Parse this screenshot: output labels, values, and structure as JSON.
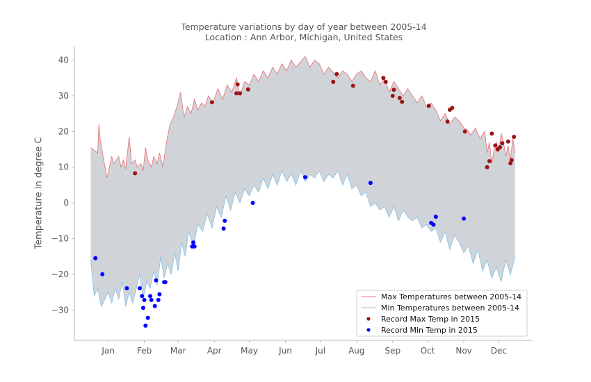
{
  "chart_data": {
    "type": "line",
    "title": "Temperature variations by day of year between 2005-14",
    "subtitle": "Location : Ann Arbor, Michigan, United States",
    "xlabel": "",
    "ylabel": "Temperature in degree C",
    "ylim": [
      -38.5,
      44
    ],
    "xlim": [
      -14,
      379
    ],
    "y_ticks": [
      40,
      30,
      20,
      10,
      0,
      -10,
      -20,
      -30
    ],
    "x_ticks": [
      {
        "day": 15,
        "label": "Jan"
      },
      {
        "day": 46,
        "label": "Feb"
      },
      {
        "day": 75,
        "label": "Mar"
      },
      {
        "day": 106,
        "label": "Apr"
      },
      {
        "day": 136,
        "label": "May"
      },
      {
        "day": 167,
        "label": "Jun"
      },
      {
        "day": 197,
        "label": "Jul"
      },
      {
        "day": 228,
        "label": "Aug"
      },
      {
        "day": 259,
        "label": "Sep"
      },
      {
        "day": 289,
        "label": "Oct"
      },
      {
        "day": 320,
        "label": "Nov"
      },
      {
        "day": 350,
        "label": "Dec"
      }
    ],
    "grid": false,
    "legend_position": "bottom-right",
    "colors": {
      "max_line": "#e8787b",
      "min_line": "#8cc2e0",
      "fill": "#d0d4d9",
      "record_max": "#9b1515",
      "record_min": "#0000ff"
    },
    "series": [
      {
        "name": "Max Temperatures between 2005-14",
        "kind": "line",
        "x": [
          0,
          6,
          7,
          8,
          12,
          14,
          18,
          20,
          24,
          26,
          28,
          30,
          33,
          35,
          38,
          40,
          43,
          45,
          47,
          49,
          52,
          54,
          57,
          59,
          62,
          65,
          68,
          71,
          74,
          77,
          80,
          83,
          86,
          89,
          92,
          95,
          98,
          101,
          105,
          109,
          113,
          117,
          121,
          125,
          128,
          132,
          136,
          140,
          144,
          148,
          152,
          156,
          160,
          164,
          168,
          172,
          176,
          180,
          184,
          188,
          192,
          196,
          200,
          204,
          208,
          212,
          216,
          220,
          224,
          228,
          232,
          236,
          240,
          244,
          248,
          252,
          256,
          260,
          264,
          268,
          272,
          276,
          280,
          284,
          288,
          292,
          296,
          300,
          304,
          308,
          312,
          316,
          320,
          323,
          326,
          330,
          334,
          338,
          340,
          342,
          344,
          346,
          348,
          350,
          352,
          354,
          356,
          358,
          360,
          362,
          364
        ],
        "y": [
          15.5,
          14,
          22,
          18,
          10.5,
          7,
          13,
          11,
          13,
          10,
          12,
          9.5,
          18.5,
          11,
          12,
          10,
          11,
          9,
          15.5,
          12,
          10,
          13,
          11,
          14,
          10,
          17,
          22,
          24,
          27,
          31,
          24,
          27,
          25,
          29,
          26,
          28,
          27,
          30,
          28,
          32,
          29,
          33,
          31,
          35,
          30,
          34,
          33,
          36,
          34,
          37,
          35,
          38,
          36,
          39,
          37,
          40,
          38,
          39.5,
          41,
          38,
          40,
          39,
          36,
          38,
          36.5,
          35,
          37,
          36,
          34,
          36,
          37,
          35,
          34,
          37,
          33,
          35,
          31,
          34,
          32,
          30,
          32,
          30,
          28,
          30,
          27,
          28,
          26,
          23,
          25,
          22,
          24,
          23,
          21,
          20.5,
          19,
          21,
          18,
          20,
          14,
          17,
          11,
          15,
          17,
          14,
          19.5,
          17,
          13,
          16,
          12,
          18,
          14
        ]
      },
      {
        "name": "Min Temperatures between 2005-14",
        "kind": "line",
        "x": [
          0,
          3,
          6,
          9,
          12,
          15,
          18,
          21,
          24,
          27,
          30,
          33,
          36,
          39,
          42,
          45,
          48,
          51,
          54,
          57,
          60,
          63,
          66,
          69,
          72,
          75,
          78,
          81,
          84,
          88,
          92,
          96,
          100,
          104,
          108,
          112,
          116,
          120,
          124,
          128,
          132,
          136,
          140,
          144,
          148,
          152,
          156,
          160,
          164,
          168,
          172,
          176,
          180,
          184,
          188,
          192,
          196,
          200,
          204,
          208,
          212,
          216,
          220,
          224,
          228,
          232,
          236,
          240,
          244,
          248,
          252,
          256,
          260,
          264,
          268,
          272,
          276,
          280,
          284,
          288,
          292,
          296,
          300,
          304,
          308,
          312,
          316,
          320,
          324,
          328,
          332,
          336,
          340,
          344,
          348,
          352,
          356,
          360,
          364
        ],
        "y": [
          -16,
          -26,
          -24,
          -29,
          -27,
          -25,
          -28,
          -24,
          -27,
          -22,
          -29,
          -25,
          -28,
          -24,
          -20,
          -27,
          -22,
          -24,
          -19,
          -23,
          -15,
          -21,
          -17,
          -20,
          -14,
          -19,
          -11,
          -15,
          -8,
          -12,
          -6,
          -8,
          -3,
          -7,
          -1,
          -4,
          2,
          -2,
          3,
          0,
          4,
          2,
          5,
          3,
          7,
          4,
          8,
          5,
          9,
          6,
          8,
          5,
          9,
          6,
          8,
          7,
          9,
          6,
          8,
          7,
          9,
          5,
          8,
          4,
          5,
          2,
          3,
          -1,
          0,
          -2,
          -1,
          -4,
          -1,
          -5,
          -2,
          -4,
          -5,
          -4,
          -7,
          -6,
          -8,
          -7,
          -11,
          -8,
          -13,
          -9,
          -11,
          -14,
          -12,
          -17,
          -13,
          -19,
          -16,
          -21,
          -18,
          -22,
          -16,
          -20,
          -15
        ]
      },
      {
        "name": "Record Max Temp in 2015",
        "kind": "scatter",
        "x": [
          38,
          104,
          125,
          126,
          128,
          135,
          208,
          211,
          225,
          251,
          253,
          259,
          260,
          265,
          267,
          290,
          306,
          308,
          310,
          321,
          340,
          342,
          344,
          347,
          349,
          351,
          353,
          358,
          360,
          361,
          363
        ],
        "y": [
          8.3,
          28.2,
          30.7,
          33.2,
          30.7,
          31.8,
          33.9,
          36.1,
          32.8,
          35.0,
          33.9,
          30.0,
          31.7,
          29.4,
          28.3,
          27.2,
          22.8,
          26.1,
          26.6,
          20.0,
          10.0,
          11.7,
          19.4,
          16.1,
          15.0,
          15.6,
          16.7,
          17.2,
          11.1,
          12.0,
          18.5
        ]
      },
      {
        "name": "Record Min Temp in 2015",
        "kind": "scatter",
        "x": [
          4,
          10,
          31,
          42,
          44,
          45,
          46,
          47,
          49,
          51,
          52,
          55,
          56,
          58,
          59,
          63,
          64,
          87,
          88,
          89,
          114,
          115,
          139,
          184,
          240,
          292,
          294,
          296,
          320
        ],
        "y": [
          -15.5,
          -20.0,
          -23.9,
          -23.9,
          -26.1,
          -29.4,
          -27.2,
          -34.4,
          -32.2,
          -26.1,
          -27.2,
          -28.9,
          -21.7,
          -27.2,
          -25.6,
          -22.2,
          -22.2,
          -12.2,
          -11.1,
          -12.2,
          -7.2,
          -5.0,
          0.0,
          7.2,
          5.6,
          -5.6,
          -6.1,
          -3.9,
          -4.4
        ]
      }
    ]
  }
}
